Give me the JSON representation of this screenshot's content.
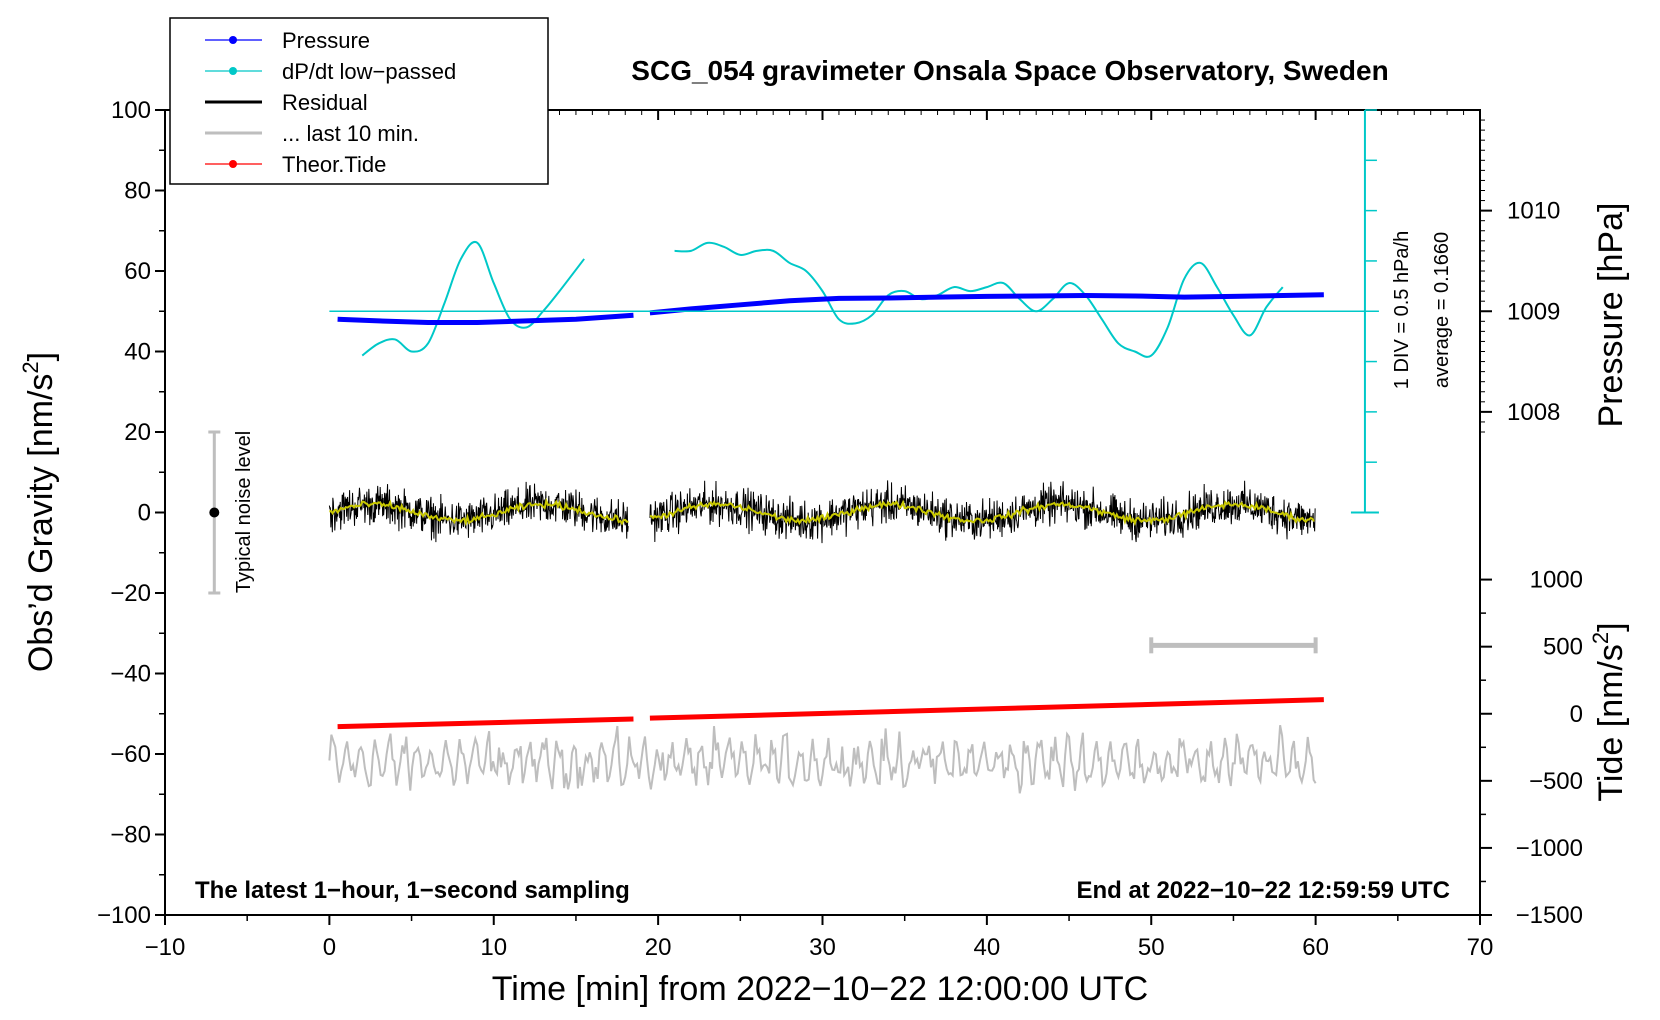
{
  "chart_data": {
    "type": "line",
    "title": "SCG_054 gravimeter Onsala Space Observatory, Sweden",
    "xlabel": "Time [min] from 2022−10−22 12:00:00 UTC",
    "ylabel_left": "Obs’d Gravity [nm/s",
    "ylabel_left_sup": "2",
    "ylabel_left_end": "]",
    "ylabel_right_pressure": "Pressure [hPa]",
    "ylabel_right_tide": "Tide [nm/s",
    "ylabel_right_tide_sup": "2",
    "ylabel_right_tide_end": "]",
    "xlim": [
      -10,
      70
    ],
    "ylim": [
      -100,
      100
    ],
    "x_ticks": [
      "−10",
      "0",
      "10",
      "20",
      "30",
      "40",
      "50",
      "60",
      "70"
    ],
    "y_ticks": [
      "−100",
      "−80",
      "−60",
      "−40",
      "−20",
      "0",
      "20",
      "40",
      "60",
      "80",
      "100"
    ],
    "pressure_ticks": [
      "1008",
      "1009",
      "1010"
    ],
    "tide_ticks": [
      "−1500",
      "−1000",
      "−500",
      "0",
      "500",
      "1000"
    ],
    "legend": [
      {
        "label": "Pressure",
        "color": "#0000ff",
        "marker": true
      },
      {
        "label": "dP/dt low−passed",
        "color": "#00c8c8",
        "marker": true
      },
      {
        "label": "Residual",
        "color": "#000000",
        "marker": false
      },
      {
        "label": "... last 10 min.",
        "color": "#bebebe",
        "marker": false
      },
      {
        "label": "Theor.Tide",
        "color": "#ff0000",
        "marker": true
      }
    ],
    "annotations": {
      "bottom_left": "The latest 1−hour, 1−second sampling",
      "bottom_right": "End at 2022−10−22 12:59:59 UTC",
      "div_label": "1 DIV = 0.5 hPa/h",
      "average_label": "average = 0.1660",
      "noise_label": "Typical noise level"
    },
    "noise_bar": {
      "x": -7,
      "center": 0,
      "low": -20,
      "high": 20
    },
    "last10_bar": {
      "x_start": 50,
      "x_end": 60,
      "y": -33
    },
    "dpdt_scale_bar": {
      "x": 63,
      "y_base": 0,
      "y_top": 100,
      "y_avg": 50
    },
    "series": [
      {
        "name": "Pressure",
        "color": "#0000ff",
        "gap": [
          18.5,
          19.5
        ],
        "x": [
          0.5,
          3,
          6,
          9,
          12,
          15,
          18.5,
          19.5,
          22,
          25,
          28,
          31,
          34,
          37,
          40,
          43,
          46,
          49,
          52,
          55,
          58,
          60.5
        ],
        "y": [
          48,
          47.6,
          47.2,
          47.2,
          47.6,
          48,
          49,
          49.6,
          50.6,
          51.6,
          52.6,
          53.2,
          53.3,
          53.5,
          53.7,
          53.8,
          53.9,
          53.8,
          53.5,
          53.7,
          53.9,
          54.1
        ]
      },
      {
        "name": "dP/dt low−passed",
        "color": "#00c8c8",
        "gap": [
          15.5,
          21
        ],
        "x": [
          2,
          3,
          4,
          5,
          6,
          7,
          8,
          9,
          10,
          11,
          12,
          13,
          14,
          15.5,
          21,
          22,
          23,
          24,
          25,
          26,
          27,
          28,
          29,
          30,
          31,
          32,
          33,
          34,
          35,
          36,
          37,
          38,
          39,
          40,
          41,
          42,
          43,
          44,
          45,
          46,
          47,
          48,
          49,
          50,
          51,
          52,
          53,
          54,
          55,
          56,
          57,
          58
        ],
        "y": [
          39,
          42,
          43,
          40,
          42,
          52,
          63,
          67,
          57,
          48,
          46,
          50,
          55,
          63,
          65,
          65,
          67,
          66,
          64,
          65,
          65,
          62,
          60,
          55,
          48,
          47,
          49,
          54,
          55,
          53,
          54,
          56,
          55,
          56,
          57,
          53,
          50,
          53,
          57,
          54,
          48,
          42,
          40,
          39,
          46,
          58,
          62,
          56,
          49,
          44,
          51,
          56
        ]
      },
      {
        "name": "Residual",
        "color": "#000000",
        "x_start": 0,
        "x_end": 60,
        "gap": [
          18.2,
          19.5
        ],
        "y_center": 0,
        "amplitude": 8
      },
      {
        "name": "Residual smoothed",
        "color": "#c8c800",
        "x_start": 0,
        "x_end": 60,
        "gap": [
          18.2,
          19.5
        ],
        "y_center": 0
      },
      {
        "name": "... last 10 min.",
        "color": "#bebebe",
        "x_start": 0,
        "x_end": 60,
        "y_center": -62,
        "amplitude": 7
      },
      {
        "name": "Theor.Tide",
        "color": "#ff0000",
        "gap": [
          18.5,
          19.5
        ],
        "x": [
          0.5,
          18.5,
          19.5,
          60.5
        ],
        "y": [
          -53.2,
          -51.3,
          -51.1,
          -46.5
        ]
      }
    ]
  }
}
